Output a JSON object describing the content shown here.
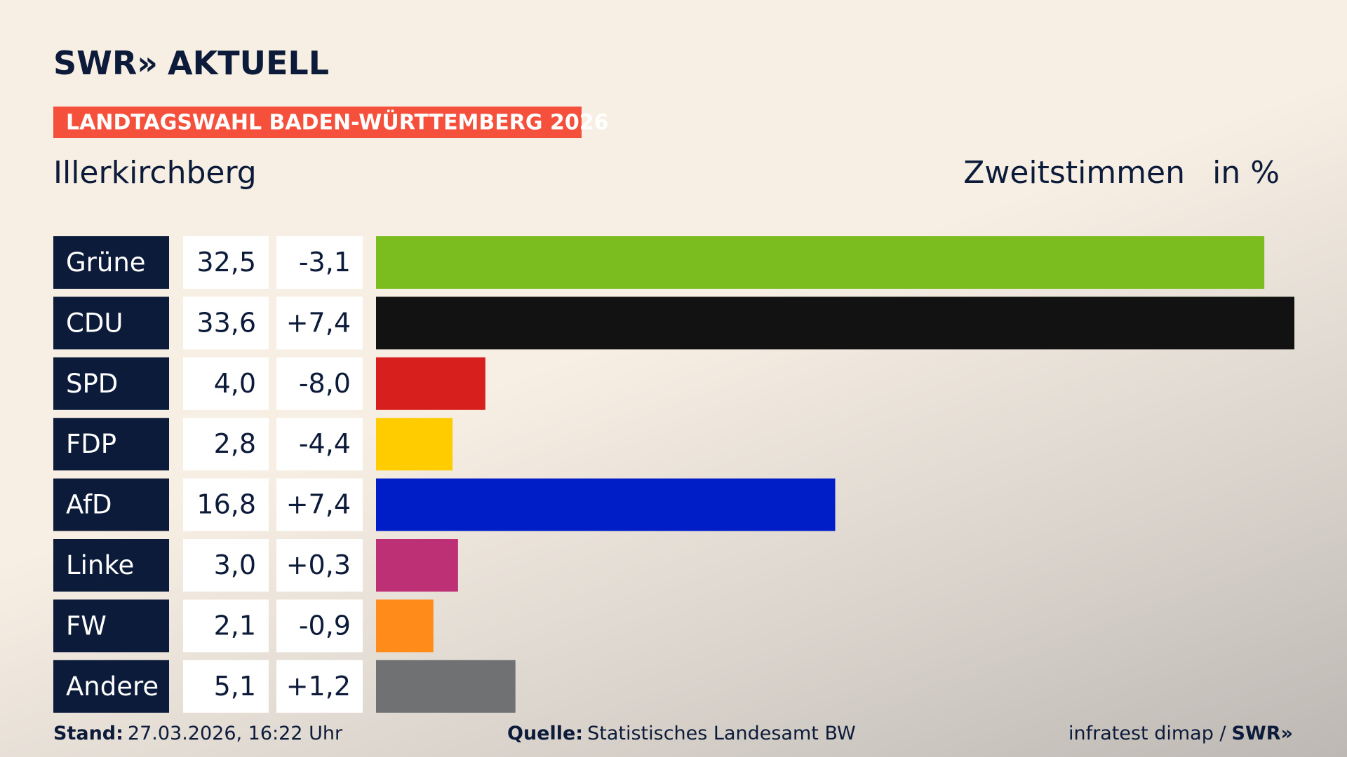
{
  "header": {
    "logo": "SWR»",
    "logo_title": "AKTUELL",
    "banner": "LANDTAGSWAHL BADEN-WÜRTTEMBERG 2026"
  },
  "chart_data": {
    "type": "bar",
    "orientation": "horizontal",
    "subtitle": "Illerkirchberg",
    "measure": "Zweitstimmen",
    "unit": "in %",
    "categories": [
      "Grüne",
      "CDU",
      "SPD",
      "FDP",
      "AfD",
      "Linke",
      "FW",
      "Andere"
    ],
    "values": [
      32.5,
      33.6,
      4.0,
      2.8,
      16.8,
      3.0,
      2.1,
      5.1
    ],
    "value_labels": [
      "32,5",
      "33,6",
      "4,0",
      "2,8",
      "16,8",
      "3,0",
      "2,1",
      "5,1"
    ],
    "changes": [
      -3.1,
      7.4,
      -8.0,
      -4.4,
      7.4,
      0.3,
      -0.9,
      1.2
    ],
    "change_labels": [
      "-3,1",
      "+7,4",
      "-8,0",
      "-4,4",
      "+7,4",
      "+0,3",
      "-0,9",
      "+1,2"
    ],
    "colors": [
      "#7bbd1e",
      "#121212",
      "#d71f1d",
      "#ffcc00",
      "#001ec8",
      "#bd3075",
      "#ff8c1a",
      "#707173"
    ],
    "xlim": [
      0,
      33.6
    ]
  },
  "footer": {
    "stand_label": "Stand:",
    "stand": "27.03.2026, 16:22 Uhr",
    "source_label": "Quelle:",
    "source": "Statistisches Landesamt BW",
    "credit": "infratest dimap /",
    "brand": "SWR»"
  }
}
